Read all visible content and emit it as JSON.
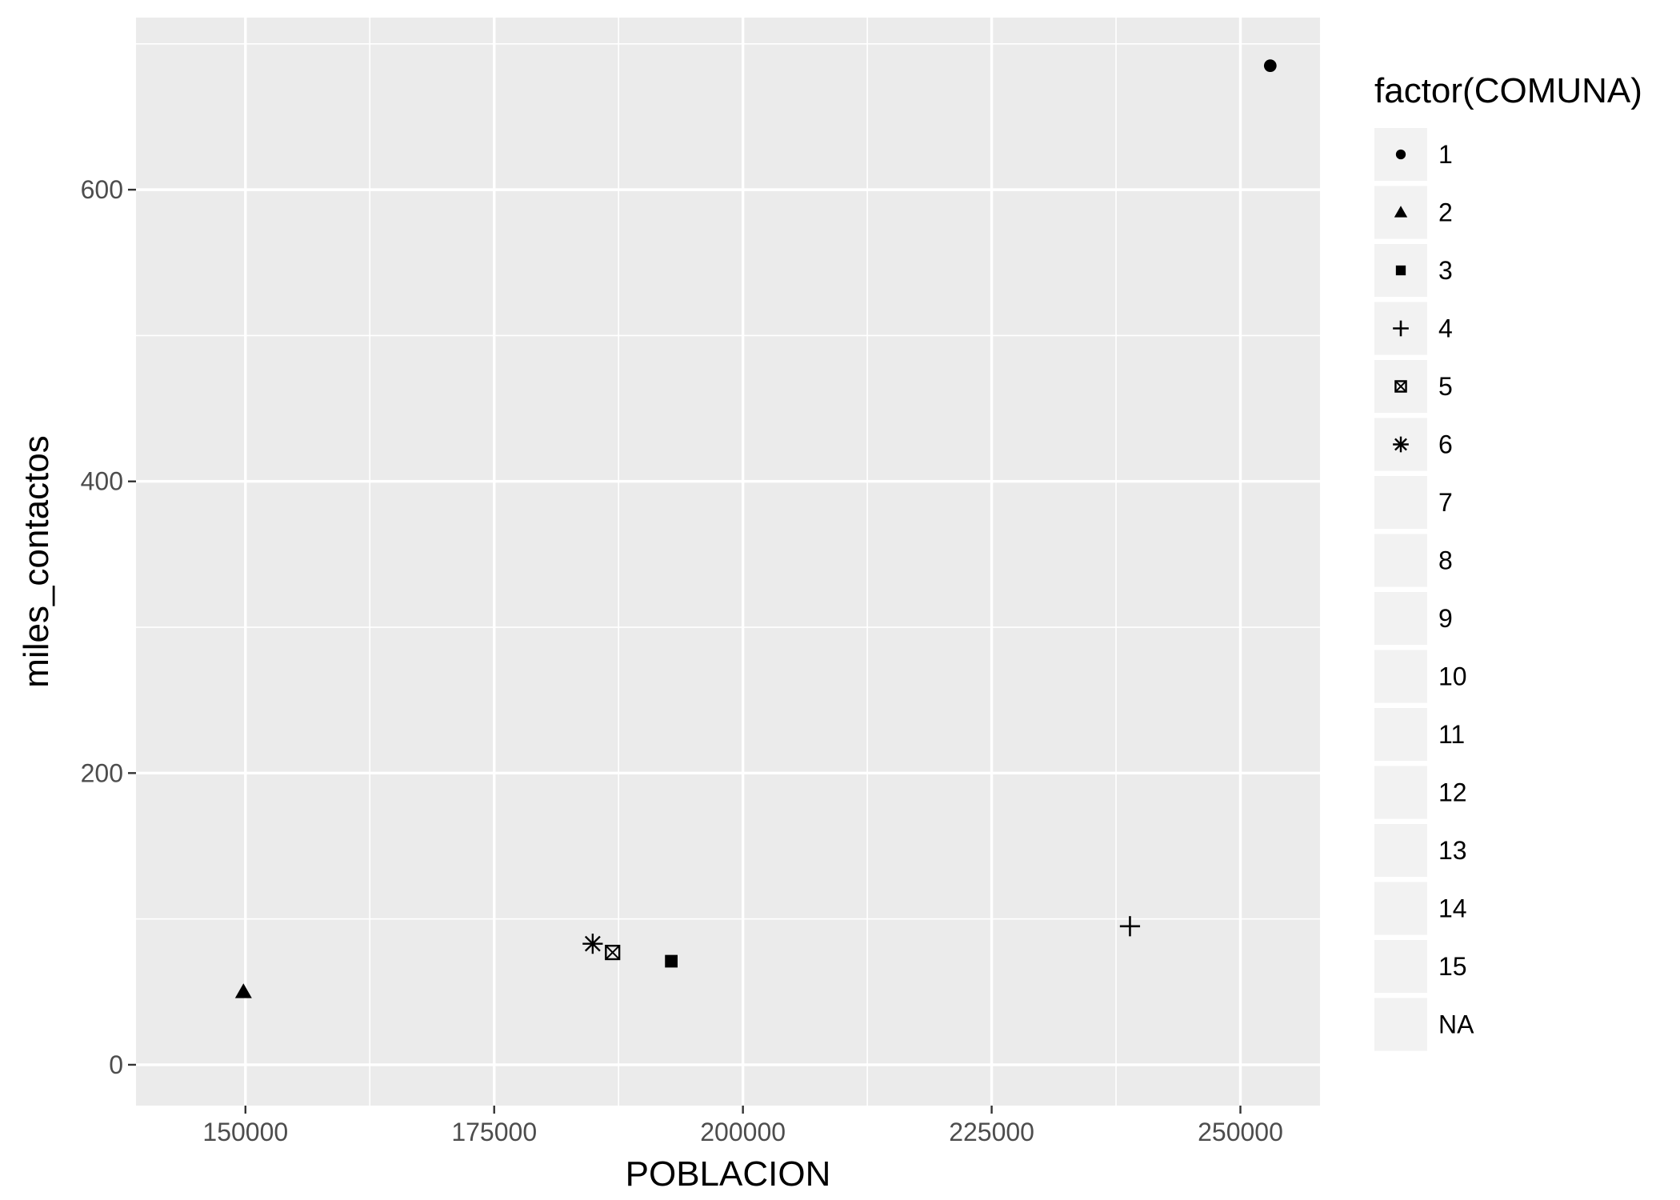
{
  "chart_data": {
    "type": "scatter",
    "title": "",
    "xlabel": "POBLACION",
    "ylabel": "miles_contactos",
    "xlim": [
      139000,
      258000
    ],
    "ylim": [
      -28,
      718
    ],
    "x_ticks": [
      150000,
      175000,
      200000,
      225000,
      250000
    ],
    "x_tick_labels": [
      "150000",
      "175000",
      "200000",
      "225000",
      "250000"
    ],
    "x_minor": [
      162500,
      187500,
      212500,
      237500
    ],
    "y_ticks": [
      0,
      200,
      400,
      600
    ],
    "y_tick_labels": [
      "0",
      "200",
      "400",
      "600"
    ],
    "y_minor": [
      100,
      300,
      500,
      700
    ],
    "grid": true,
    "legend": {
      "title": "factor(COMUNA)",
      "placement": "right",
      "entries": [
        {
          "label": "1",
          "shape": "circle"
        },
        {
          "label": "2",
          "shape": "triangle"
        },
        {
          "label": "3",
          "shape": "square"
        },
        {
          "label": "4",
          "shape": "plus"
        },
        {
          "label": "5",
          "shape": "square-x"
        },
        {
          "label": "6",
          "shape": "asterisk"
        },
        {
          "label": "7",
          "shape": "none"
        },
        {
          "label": "8",
          "shape": "none"
        },
        {
          "label": "9",
          "shape": "none"
        },
        {
          "label": "10",
          "shape": "none"
        },
        {
          "label": "11",
          "shape": "none"
        },
        {
          "label": "12",
          "shape": "none"
        },
        {
          "label": "13",
          "shape": "none"
        },
        {
          "label": "14",
          "shape": "none"
        },
        {
          "label": "15",
          "shape": "none"
        },
        {
          "label": "NA",
          "shape": "none"
        }
      ]
    },
    "points": [
      {
        "comuna": "1",
        "x": 253000,
        "y": 685,
        "shape": "circle"
      },
      {
        "comuna": "2",
        "x": 149800,
        "y": 50,
        "shape": "triangle"
      },
      {
        "comuna": "3",
        "x": 192800,
        "y": 71,
        "shape": "square"
      },
      {
        "comuna": "4",
        "x": 238900,
        "y": 95,
        "shape": "plus"
      },
      {
        "comuna": "5",
        "x": 186900,
        "y": 77,
        "shape": "square-x"
      },
      {
        "comuna": "6",
        "x": 184900,
        "y": 83,
        "shape": "asterisk"
      }
    ],
    "colors": {
      "panel": "#ebebeb",
      "grid": "#ffffff",
      "legend_key": "#f2f2f2",
      "point": "#000000",
      "tick_text": "#4d4d4d"
    }
  }
}
